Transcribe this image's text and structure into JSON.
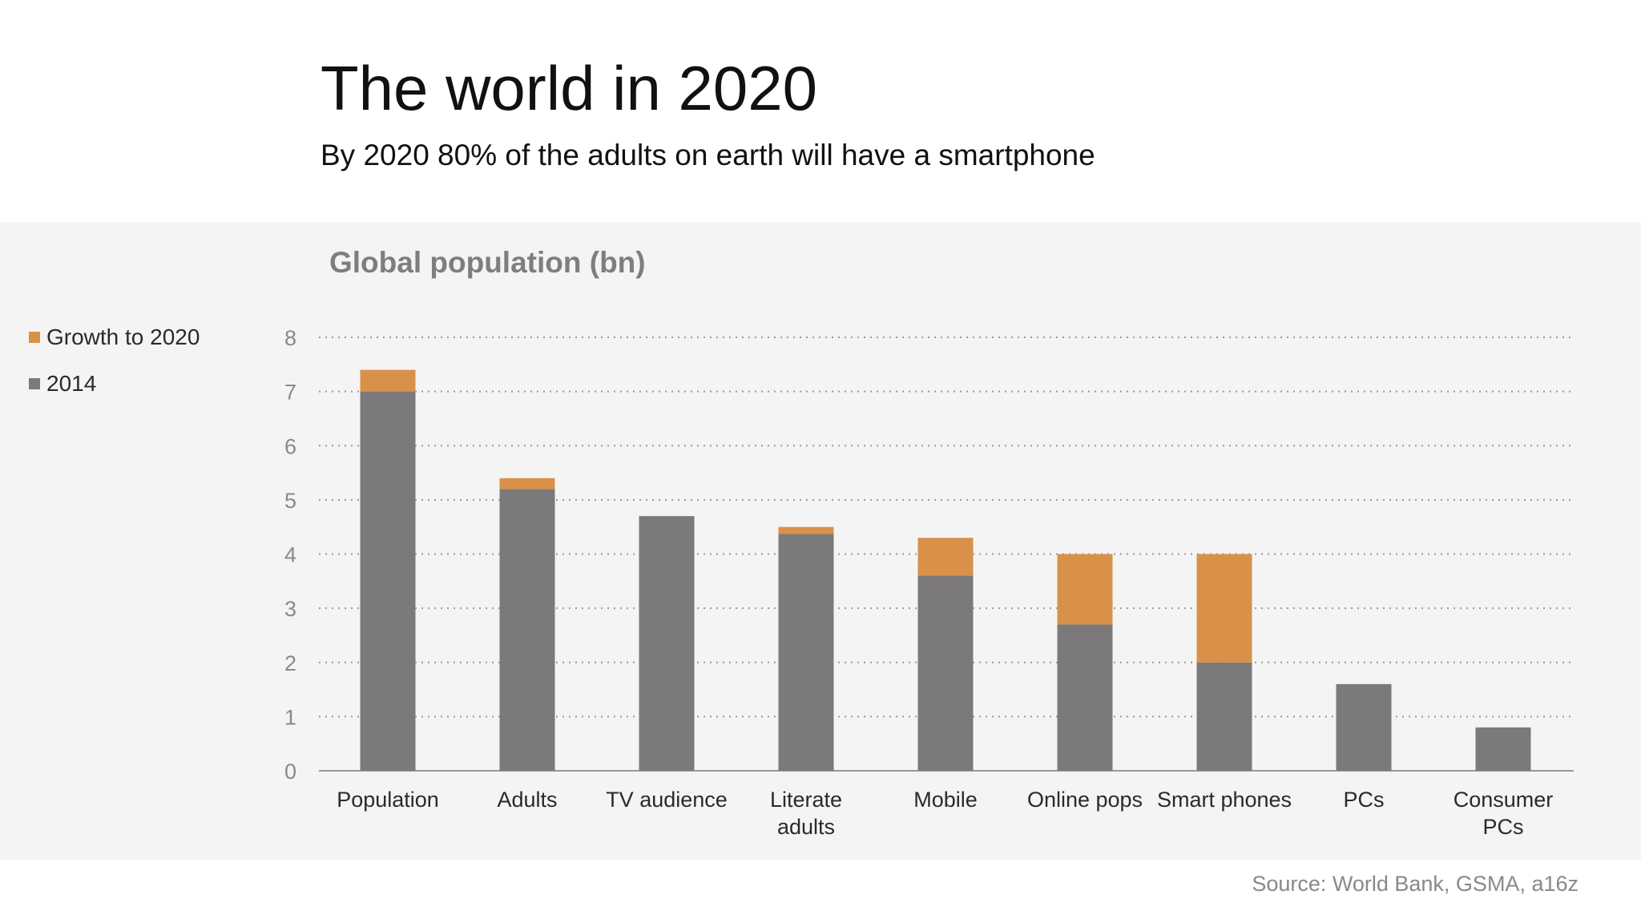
{
  "header": {
    "title": "The world in 2020",
    "subtitle": "By 2020 80% of the adults on earth will have a smartphone"
  },
  "source": "Source: World Bank, GSMA, a16z",
  "colors": {
    "base": "#7b7979",
    "growth": "#d9914a",
    "panel": "#f5f4f4"
  },
  "chart_data": {
    "type": "bar",
    "stacked": true,
    "title": "Global population (bn)",
    "xlabel": "",
    "ylabel": "",
    "ylim": [
      0,
      8
    ],
    "yticks": [
      0,
      1,
      2,
      3,
      4,
      5,
      6,
      7,
      8
    ],
    "grid": true,
    "legend_position": "left",
    "categories": [
      [
        "Population"
      ],
      [
        "Adults"
      ],
      [
        "TV audience"
      ],
      [
        "Literate",
        "adults"
      ],
      [
        "Mobile"
      ],
      [
        "Online pops"
      ],
      [
        "Smart phones"
      ],
      [
        "PCs"
      ],
      [
        "Consumer",
        "PCs"
      ]
    ],
    "series": [
      {
        "name": "2014",
        "color": "#7b7979",
        "values": [
          7.0,
          5.2,
          4.7,
          4.37,
          3.6,
          2.7,
          2.0,
          1.6,
          0.8
        ]
      },
      {
        "name": "Growth to 2020",
        "color": "#d9914a",
        "values": [
          0.4,
          0.2,
          0.0,
          0.13,
          0.7,
          1.3,
          2.0,
          0.0,
          0.0
        ]
      }
    ]
  }
}
